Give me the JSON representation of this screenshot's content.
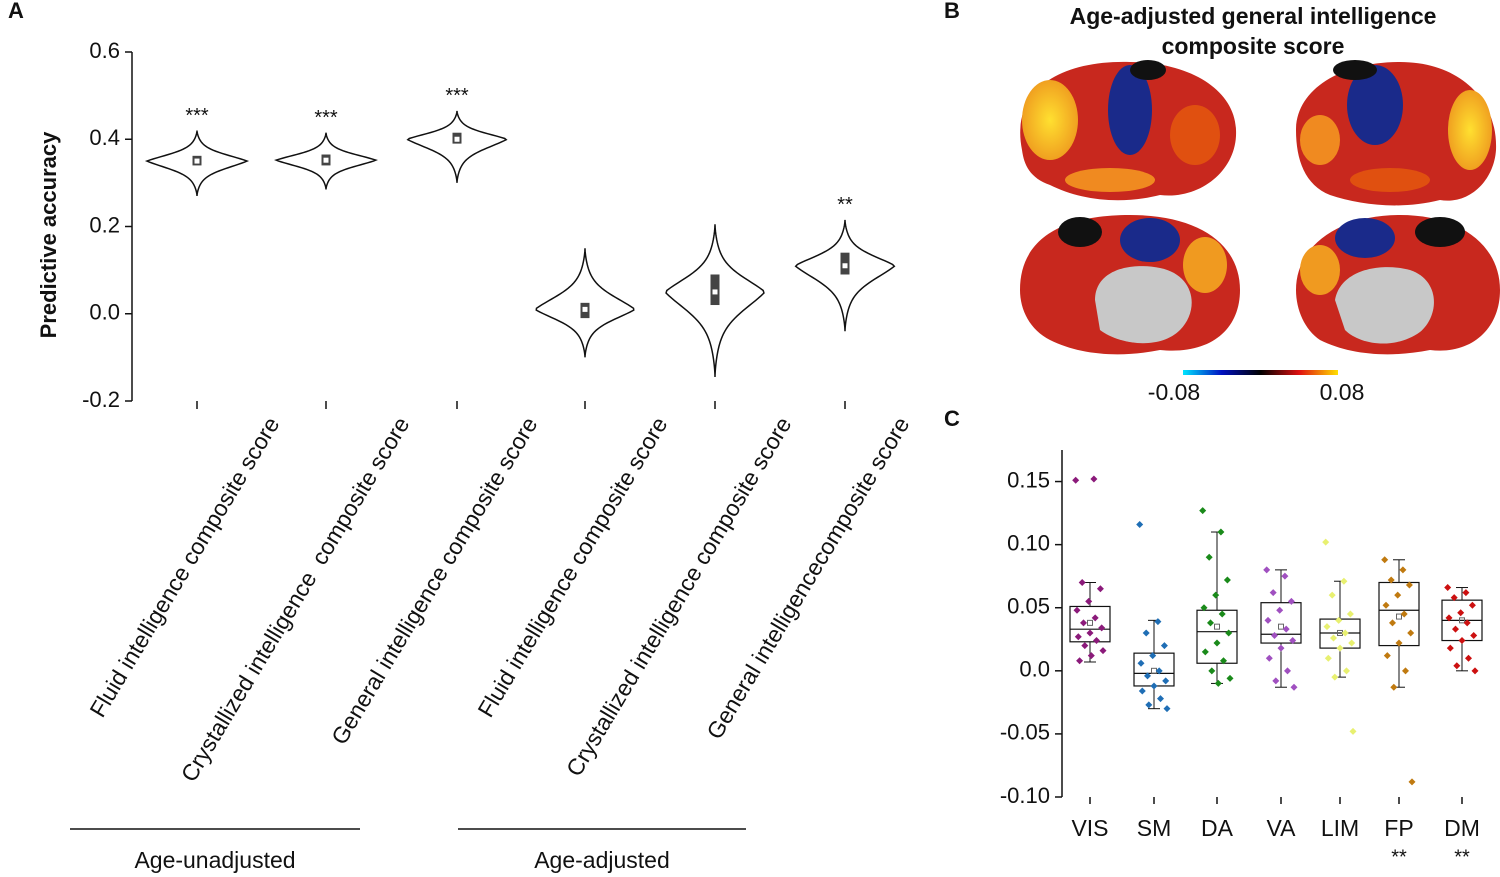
{
  "chart_data": [
    {
      "type": "violin",
      "label": "A",
      "ylabel": "Predictive accuracy",
      "categories": [
        "Fluid intelligence composite score",
        "Crystallized intelligence  composite score",
        "General intelligence composite score",
        "Fluid intelligence composite score",
        "Crystallized intelligence composite score",
        "General intelligencecomposite score"
      ],
      "min": [
        0.27,
        0.285,
        0.3,
        -0.1,
        -0.145,
        -0.04
      ],
      "q1": [
        0.34,
        0.34,
        0.39,
        -0.01,
        0.02,
        0.09
      ],
      "median": [
        0.35,
        0.352,
        0.4,
        0.01,
        0.05,
        0.11
      ],
      "q3": [
        0.362,
        0.365,
        0.415,
        0.025,
        0.09,
        0.14
      ],
      "max": [
        0.42,
        0.415,
        0.465,
        0.15,
        0.205,
        0.215
      ],
      "significance": [
        "***",
        "***",
        "***",
        null,
        null,
        "**"
      ],
      "groups": [
        "Age-unadjusted",
        "Age-adjusted"
      ],
      "color": "#444444",
      "ylim": [
        -0.2,
        0.6
      ],
      "yticks": [
        -0.2,
        {
          "value": 0,
          "label": "0.0"
        },
        0.2,
        0.4,
        0.6
      ]
    },
    {
      "type": "brain-map",
      "label": "B",
      "title": [
        "Age-adjusted general intelligence",
        "composite score"
      ],
      "colorbar": {
        "min": -0.08,
        "max": 0.08,
        "colors": [
          "#00e5ff",
          "#0010c0",
          "#000000",
          "#e01010",
          "#ffe000"
        ]
      }
    },
    {
      "type": "box",
      "label": "C",
      "ylim": [
        -0.1,
        0.175
      ],
      "yticks": [
        {
          "value": -0.1,
          "label": "-0.10"
        },
        -0.05,
        {
          "value": 0,
          "label": "0.0"
        },
        0.05,
        {
          "value": 0.1,
          "label": "0.10"
        },
        0.15
      ],
      "series": [
        {
          "name": "VIS",
          "color": "#8b1a7a",
          "whisker_low": 0.007,
          "q1": 0.023,
          "median": 0.033,
          "q3": 0.051,
          "whisker_high": 0.07,
          "mean": 0.038,
          "points": [
            0.151,
            0.152,
            0.07,
            0.065,
            0.055,
            0.048,
            0.042,
            0.038,
            0.034,
            0.03,
            0.027,
            0.024,
            0.02,
            0.016,
            0.012,
            0.008
          ]
        },
        {
          "name": "SM",
          "color": "#1f6eb5",
          "whisker_low": -0.03,
          "q1": -0.012,
          "median": -0.002,
          "q3": 0.014,
          "whisker_high": 0.04,
          "mean": 0.0,
          "points": [
            0.116,
            0.039,
            0.03,
            0.02,
            0.012,
            0.006,
            0.0,
            -0.004,
            -0.008,
            -0.012,
            -0.016,
            -0.022,
            -0.027,
            -0.03
          ]
        },
        {
          "name": "DA",
          "color": "#1a8a1a",
          "whisker_low": -0.01,
          "q1": 0.006,
          "median": 0.031,
          "q3": 0.048,
          "whisker_high": 0.11,
          "mean": 0.035,
          "points": [
            0.127,
            0.11,
            0.09,
            0.072,
            0.06,
            0.05,
            0.045,
            0.038,
            0.03,
            0.022,
            0.015,
            0.008,
            0.0,
            -0.006,
            -0.01
          ]
        },
        {
          "name": "VA",
          "color": "#a050c0",
          "whisker_low": -0.013,
          "q1": 0.022,
          "median": 0.029,
          "q3": 0.054,
          "whisker_high": 0.08,
          "mean": 0.035,
          "points": [
            0.08,
            0.075,
            0.062,
            0.055,
            0.048,
            0.04,
            0.033,
            0.028,
            0.024,
            0.018,
            0.01,
            0.0,
            -0.008,
            -0.013
          ]
        },
        {
          "name": "LIM",
          "color": "#e8f070",
          "whisker_low": -0.005,
          "q1": 0.018,
          "median": 0.03,
          "q3": 0.041,
          "whisker_high": 0.071,
          "mean": 0.03,
          "points": [
            0.102,
            0.071,
            0.06,
            0.045,
            0.04,
            0.035,
            0.03,
            0.026,
            0.022,
            0.018,
            0.01,
            0.0,
            -0.005,
            -0.048
          ]
        },
        {
          "name": "FP",
          "color": "#c07a10",
          "whisker_low": -0.013,
          "q1": 0.02,
          "median": 0.048,
          "q3": 0.07,
          "whisker_high": 0.088,
          "mean": 0.043,
          "points": [
            0.088,
            0.08,
            0.072,
            0.068,
            0.06,
            0.052,
            0.045,
            0.038,
            0.03,
            0.022,
            0.012,
            0.0,
            -0.013,
            -0.088
          ]
        },
        {
          "name": "DM",
          "color": "#cc1010",
          "whisker_low": 0.0,
          "q1": 0.024,
          "median": 0.04,
          "q3": 0.056,
          "whisker_high": 0.066,
          "mean": 0.04,
          "points": [
            0.066,
            0.062,
            0.058,
            0.052,
            0.046,
            0.042,
            0.038,
            0.033,
            0.028,
            0.024,
            0.018,
            0.01,
            0.004,
            0.0
          ]
        }
      ],
      "significance": [
        null,
        null,
        null,
        null,
        null,
        "**",
        "**"
      ]
    }
  ]
}
